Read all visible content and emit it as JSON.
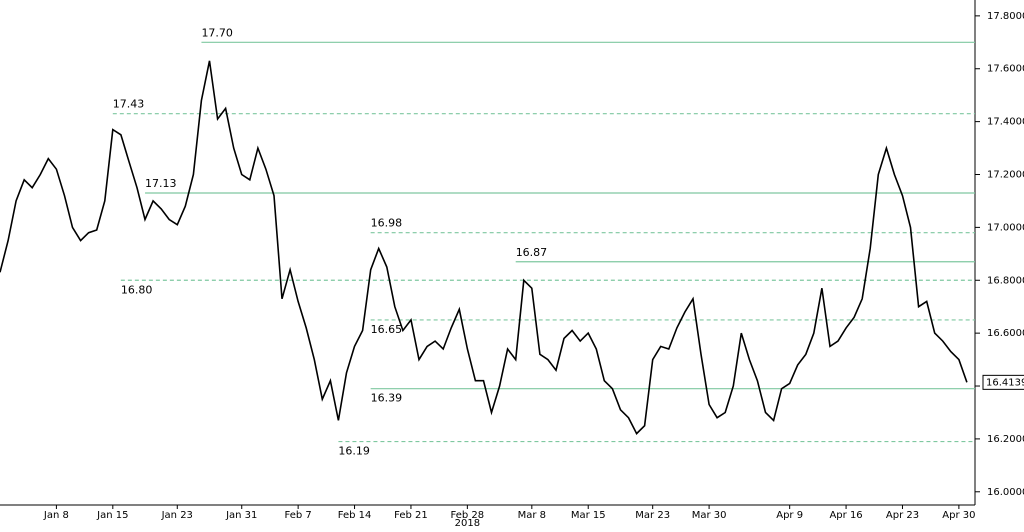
{
  "chart_data": {
    "type": "line",
    "xlabel": "2018",
    "x": [
      "2018-01-01",
      "2018-01-02",
      "2018-01-03",
      "2018-01-04",
      "2018-01-05",
      "2018-01-06",
      "2018-01-07",
      "2018-01-08",
      "2018-01-09",
      "2018-01-10",
      "2018-01-11",
      "2018-01-12",
      "2018-01-13",
      "2018-01-14",
      "2018-01-15",
      "2018-01-16",
      "2018-01-17",
      "2018-01-18",
      "2018-01-19",
      "2018-01-20",
      "2018-01-21",
      "2018-01-22",
      "2018-01-23",
      "2018-01-24",
      "2018-01-25",
      "2018-01-26",
      "2018-01-27",
      "2018-01-28",
      "2018-01-29",
      "2018-01-30",
      "2018-01-31",
      "2018-02-01",
      "2018-02-02",
      "2018-02-03",
      "2018-02-04",
      "2018-02-05",
      "2018-02-06",
      "2018-02-07",
      "2018-02-08",
      "2018-02-09",
      "2018-02-10",
      "2018-02-11",
      "2018-02-12",
      "2018-02-13",
      "2018-02-14",
      "2018-02-15",
      "2018-02-16",
      "2018-02-17",
      "2018-02-18",
      "2018-02-19",
      "2018-02-20",
      "2018-02-21",
      "2018-02-22",
      "2018-02-23",
      "2018-02-24",
      "2018-02-25",
      "2018-02-26",
      "2018-02-27",
      "2018-02-28",
      "2018-03-01",
      "2018-03-02",
      "2018-03-03",
      "2018-03-04",
      "2018-03-05",
      "2018-03-06",
      "2018-03-07",
      "2018-03-08",
      "2018-03-09",
      "2018-03-10",
      "2018-03-11",
      "2018-03-12",
      "2018-03-13",
      "2018-03-14",
      "2018-03-15",
      "2018-03-16",
      "2018-03-17",
      "2018-03-18",
      "2018-03-19",
      "2018-03-20",
      "2018-03-21",
      "2018-03-22",
      "2018-03-23",
      "2018-03-24",
      "2018-03-25",
      "2018-03-26",
      "2018-03-27",
      "2018-03-28",
      "2018-03-29",
      "2018-03-30",
      "2018-03-31",
      "2018-04-01",
      "2018-04-02",
      "2018-04-03",
      "2018-04-04",
      "2018-04-05",
      "2018-04-06",
      "2018-04-07",
      "2018-04-08",
      "2018-04-09",
      "2018-04-10",
      "2018-04-11",
      "2018-04-12",
      "2018-04-13",
      "2018-04-14",
      "2018-04-15",
      "2018-04-16",
      "2018-04-17",
      "2018-04-18",
      "2018-04-19",
      "2018-04-20",
      "2018-04-21",
      "2018-04-22",
      "2018-04-23",
      "2018-04-24",
      "2018-04-25",
      "2018-04-26",
      "2018-04-27",
      "2018-04-28",
      "2018-04-29",
      "2018-04-30",
      "2018-05-01"
    ],
    "series": [
      {
        "color": "#000000",
        "values": [
          16.83,
          16.95,
          17.1,
          17.18,
          17.15,
          17.2,
          17.26,
          17.22,
          17.12,
          17.0,
          16.95,
          16.98,
          16.99,
          17.1,
          17.37,
          17.35,
          17.25,
          17.15,
          17.03,
          17.1,
          17.07,
          17.03,
          17.01,
          17.08,
          17.2,
          17.48,
          17.63,
          17.41,
          17.45,
          17.3,
          17.2,
          17.18,
          17.3,
          17.22,
          17.12,
          16.73,
          16.84,
          16.72,
          16.62,
          16.5,
          16.35,
          16.42,
          16.27,
          16.45,
          16.55,
          16.61,
          16.84,
          16.92,
          16.85,
          16.7,
          16.61,
          16.65,
          16.5,
          16.55,
          16.57,
          16.54,
          16.62,
          16.69,
          16.54,
          16.42,
          16.42,
          16.3,
          16.4,
          16.54,
          16.5,
          16.8,
          16.77,
          16.52,
          16.5,
          16.46,
          16.58,
          16.61,
          16.57,
          16.6,
          16.54,
          16.42,
          16.39,
          16.31,
          16.28,
          16.22,
          16.25,
          16.5,
          16.55,
          16.54,
          16.62,
          16.68,
          16.73,
          16.52,
          16.33,
          16.28,
          16.3,
          16.4,
          16.6,
          16.5,
          16.42,
          16.3,
          16.27,
          16.39,
          16.41,
          16.48,
          16.52,
          16.6,
          16.77,
          16.55,
          16.57,
          16.62,
          16.66,
          16.73,
          16.92,
          17.2,
          17.3,
          17.2,
          17.12,
          17.0,
          16.7,
          16.72,
          16.6,
          16.57,
          16.53,
          16.5,
          16.4139
        ]
      }
    ],
    "xlim": [
      "2018-01-01",
      "2018-05-02"
    ],
    "xticks": [
      {
        "value": "2018-01-08",
        "label": "Jan 8"
      },
      {
        "value": "2018-01-15",
        "label": "Jan 15"
      },
      {
        "value": "2018-01-23",
        "label": "Jan 23"
      },
      {
        "value": "2018-01-31",
        "label": "Jan 31"
      },
      {
        "value": "2018-02-07",
        "label": "Feb 7"
      },
      {
        "value": "2018-02-14",
        "label": "Feb 14"
      },
      {
        "value": "2018-02-21",
        "label": "Feb 21"
      },
      {
        "value": "2018-02-28",
        "label": "Feb 28"
      },
      {
        "value": "2018-03-08",
        "label": "Mar 8"
      },
      {
        "value": "2018-03-15",
        "label": "Mar 15"
      },
      {
        "value": "2018-03-23",
        "label": "Mar 23"
      },
      {
        "value": "2018-03-30",
        "label": "Mar 30"
      },
      {
        "value": "2018-04-09",
        "label": "Apr 9"
      },
      {
        "value": "2018-04-16",
        "label": "Apr 16"
      },
      {
        "value": "2018-04-23",
        "label": "Apr 23"
      },
      {
        "value": "2018-04-30",
        "label": "Apr 30"
      }
    ],
    "ylim": [
      15.95,
      17.86
    ],
    "yticks": [
      {
        "value": 16.0,
        "label": "16.0000"
      },
      {
        "value": 16.2,
        "label": "16.2000"
      },
      {
        "value": 16.4,
        "label": "16.4000"
      },
      {
        "value": 16.6,
        "label": "16.6000"
      },
      {
        "value": 16.8,
        "label": "16.8000"
      },
      {
        "value": 17.0,
        "label": "17.0000"
      },
      {
        "value": 17.2,
        "label": "17.2000"
      },
      {
        "value": 17.4,
        "label": "17.4000"
      },
      {
        "value": 17.6,
        "label": "17.6000"
      },
      {
        "value": 17.8,
        "label": "17.8000"
      }
    ],
    "axis_side": "right",
    "level_color": "#7fc8a0",
    "levels": [
      {
        "value": 17.7,
        "label": "17.70",
        "dashed": false,
        "date": "2018-01-26",
        "label_position": "above"
      },
      {
        "value": 17.43,
        "label": "17.43",
        "dashed": true,
        "date": "2018-01-15",
        "label_position": "above"
      },
      {
        "value": 17.13,
        "label": "17.13",
        "dashed": false,
        "date": "2018-01-19",
        "label_position": "above"
      },
      {
        "value": 16.98,
        "label": "16.98",
        "dashed": true,
        "date": "2018-02-16",
        "label_position": "above"
      },
      {
        "value": 16.87,
        "label": "16.87",
        "dashed": false,
        "date": "2018-03-06",
        "label_position": "above"
      },
      {
        "value": 16.8,
        "label": "16.80",
        "dashed": true,
        "date": "2018-01-16",
        "label_position": "below"
      },
      {
        "value": 16.65,
        "label": "16.65",
        "dashed": true,
        "date": "2018-02-16",
        "label_position": "below"
      },
      {
        "value": 16.39,
        "label": "16.39",
        "dashed": false,
        "date": "2018-02-16",
        "label_position": "below"
      },
      {
        "value": 16.19,
        "label": "16.19",
        "dashed": true,
        "date": "2018-02-12",
        "label_position": "below"
      }
    ]
  }
}
